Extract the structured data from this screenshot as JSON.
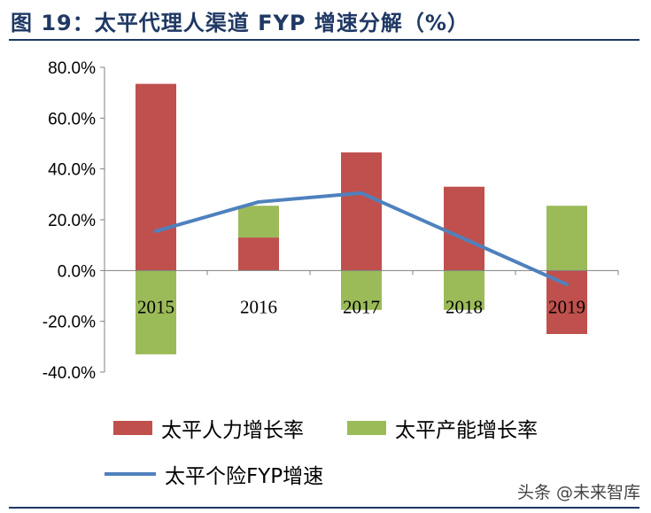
{
  "figure_title": "图 19：太平代理人渠道 FYP 增速分解（%）",
  "watermark": "头条 @未来智库",
  "colors": {
    "title": "#1f3864",
    "agent_growth": "#c0504d",
    "productivity_growth": "#9bbb59",
    "fyp_growth": "#4f81bd",
    "axis": "#808080"
  },
  "chart_data": {
    "type": "bar",
    "title": "太平代理人渠道 FYP 增速分解（%）",
    "categories": [
      "2015",
      "2016",
      "2017",
      "2018",
      "2019"
    ],
    "series": [
      {
        "name": "太平人力增长率",
        "type": "bar",
        "color": "#c0504d",
        "values": [
          73.5,
          13.0,
          46.5,
          33.0,
          -25.0
        ]
      },
      {
        "name": "太平产能增长率",
        "type": "bar",
        "color": "#9bbb59",
        "values": [
          -33.0,
          12.5,
          -15.5,
          -15.5,
          25.5
        ]
      },
      {
        "name": "太平个险FYP增速",
        "type": "line",
        "color": "#4f81bd",
        "values": [
          15.5,
          27.0,
          30.5,
          12.5,
          -5.5
        ]
      }
    ],
    "ylim": [
      -40,
      80
    ],
    "yticks": [
      80,
      60,
      40,
      20,
      0,
      -20,
      -40
    ],
    "ytick_labels": [
      "80.0%",
      "60.0%",
      "40.0%",
      "20.0%",
      "0.0%",
      "-20.0%",
      "-40.0%"
    ],
    "xlabel": "",
    "ylabel": "",
    "grid": false,
    "legend_position": "bottom"
  },
  "legend": {
    "items": [
      {
        "label": "太平人力增长率",
        "color": "#c0504d",
        "kind": "bar"
      },
      {
        "label": "太平产能增长率",
        "color": "#9bbb59",
        "kind": "bar"
      },
      {
        "label": "太平个险FYP增速",
        "color": "#4f81bd",
        "kind": "line"
      }
    ]
  }
}
